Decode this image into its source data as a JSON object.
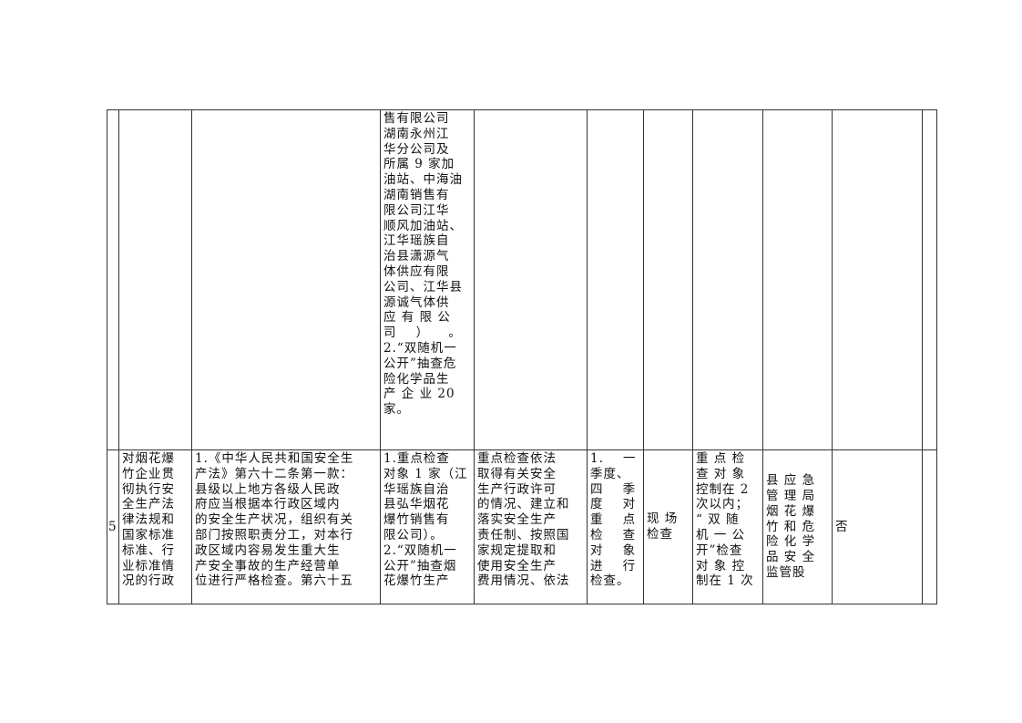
{
  "rows": [
    {
      "cells": [
        "",
        "",
        "",
        "售有限公司\n湖南永州江\n华分公司及\n所属 9 家加\n油站、中海油\n湖南销售有\n限公司江华\n顺风加油站、\n江华瑶族自\n治县潇源气\n体供应有限\n公司、江华县\n源诚气体供\n应 有 限 公\n司    ）    。\n2.“双随机一\n公开”抽查危\n险化学品生\n产 企 业 20\n家。",
        "",
        "",
        "",
        "",
        "",
        "",
        ""
      ]
    },
    {
      "cells": [
        "5",
        "对烟花爆\n竹企业贯\n彻执行安\n全生产法\n律法规和\n国家标准\n标准、行\n业标准情\n况的行政",
        "1.《中华人民共和国安全生\n产法》第六十二条第一款：\n县级以上地方各级人民政\n府应当根据本行政区域内\n的安全生产状况，组织有关\n部门按照职责分工，对本行\n政区域内容易发生重大生\n产安全事故的生产经营单\n位进行严格检查。第六十五",
        "1.重点检查\n对象 1 家（江\n华瑶族自治\n县弘华烟花\n爆竹销售有\n限公司）。\n2.“双随机一\n公开”抽查烟\n花爆竹生产",
        "重点检查依法\n取得有关安全\n生产行政许可\n的情况、建立和\n落实安全生产\n责任制、按照国\n家规定提取和\n使用安全生产\n费用情况、依法",
        "1.    一\n季度、\n四    季\n度    对\n重    点\n检    查\n对    象\n进    行\n检查。",
        "现 场\n检查",
        "重 点 检\n查 对 象\n控制在 2\n次以内；\n“ 双 随\n机 一 公\n开”检查\n对 象 控\n制在 1 次",
        "县 应 急\n管 理 局\n烟 花 爆\n竹 和 危\n险 化 学\n品 安 全\n监管股",
        "否",
        ""
      ]
    }
  ]
}
